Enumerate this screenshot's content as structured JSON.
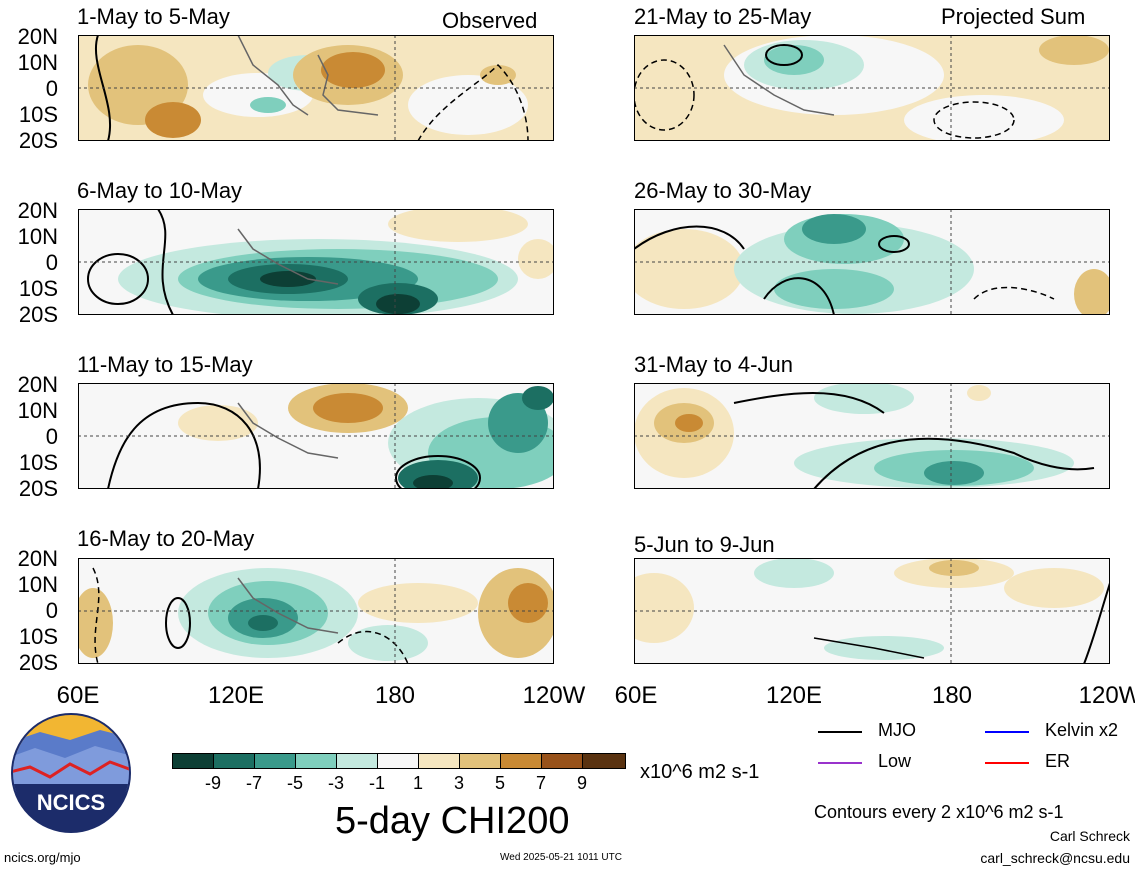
{
  "panels": [
    {
      "id": "p1",
      "title": "1-May to 5-May"
    },
    {
      "id": "p2",
      "title": "6-May to 10-May"
    },
    {
      "id": "p3",
      "title": "11-May to 15-May"
    },
    {
      "id": "p4",
      "title": "16-May to 20-May"
    },
    {
      "id": "p5",
      "title": "21-May to 25-May"
    },
    {
      "id": "p6",
      "title": "26-May to 30-May"
    },
    {
      "id": "p7",
      "title": "31-May to 4-Jun"
    },
    {
      "id": "p8",
      "title": "5-Jun to 9-Jun"
    }
  ],
  "labels": {
    "observed": "Observed",
    "projected": "Projected Sum"
  },
  "axes": {
    "lat_ticks": [
      "20N",
      "10N",
      "0",
      "10S",
      "20S"
    ],
    "lon_ticks": [
      "60E",
      "120E",
      "180",
      "120W"
    ]
  },
  "colorbar": {
    "colors": [
      "#0d3f35",
      "#1c6f62",
      "#3a9a8b",
      "#7fcfbd",
      "#c4e9df",
      "#f7f7f7",
      "#f5e6c0",
      "#e2c27b",
      "#c98a34",
      "#98521a",
      "#5a3311"
    ],
    "labels": [
      "-9",
      "-7",
      "-5",
      "-3",
      "-1",
      "1",
      "3",
      "5",
      "7",
      "9"
    ],
    "units": "x10^6 m2 s-1"
  },
  "main_title": "5-day CHI200",
  "legend": {
    "items": [
      {
        "label": "MJO",
        "color": "#000000"
      },
      {
        "label": "Kelvin x2",
        "color": "#0000ff"
      },
      {
        "label": "Low",
        "color": "#9932cc"
      },
      {
        "label": "ER",
        "color": "#ff0000"
      }
    ],
    "contour_note": "Contours every 2 x10^6 m2 s-1"
  },
  "credit": {
    "author": "Carl Schreck",
    "email": "carl_schreck@ncsu.edu",
    "site": "ncics.org/mjo",
    "timestamp": "Wed 2025-05-21 1011 UTC",
    "logo_text": "NCICS"
  }
}
